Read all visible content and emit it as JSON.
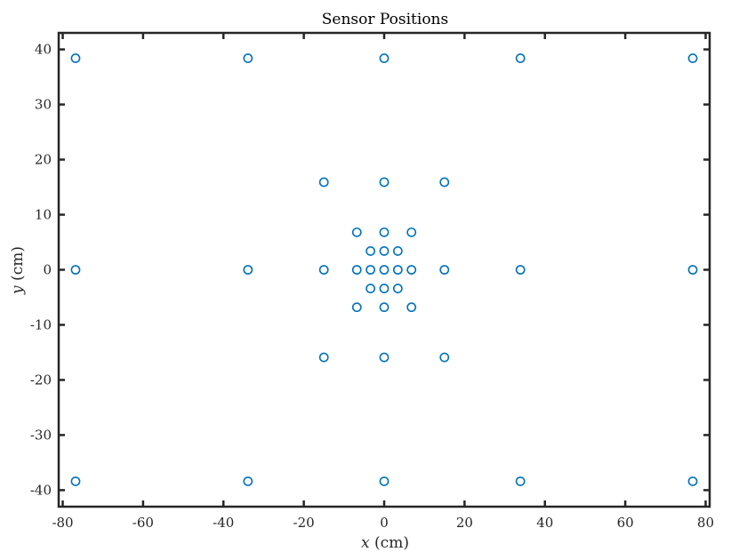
{
  "chart_data": {
    "type": "scatter",
    "title": "Sensor Positions",
    "xlabel": {
      "var": "x",
      "unit": "(cm)"
    },
    "ylabel": {
      "var": "y",
      "unit": "(cm)"
    },
    "xlim": [
      -81,
      81
    ],
    "ylim": [
      -43,
      43
    ],
    "xticks": [
      -80,
      -60,
      -40,
      -20,
      0,
      20,
      40,
      60,
      80
    ],
    "yticks": [
      -40,
      -30,
      -20,
      -10,
      0,
      10,
      20,
      30,
      40
    ],
    "grid": false,
    "marker": "open-circle",
    "color": "#0072BD",
    "series": [
      {
        "x": [
          -76.8,
          -33.9,
          0,
          33.9,
          76.8,
          -15,
          0,
          15,
          -6.8,
          0,
          6.8,
          -3.4,
          0,
          3.4,
          -76.8,
          -33.9,
          -15,
          -6.8,
          -3.4,
          0,
          3.4,
          6.8,
          15,
          33.9,
          76.8,
          -3.4,
          0,
          3.4,
          -6.8,
          0,
          6.8,
          -15,
          0,
          15,
          -76.8,
          -33.9,
          0,
          33.9,
          76.8
        ],
        "y": [
          38.4,
          38.4,
          38.4,
          38.4,
          38.4,
          15.9,
          15.9,
          15.9,
          6.8,
          6.8,
          6.8,
          3.4,
          3.4,
          3.4,
          0,
          0,
          0,
          0,
          0,
          0,
          0,
          0,
          0,
          0,
          0,
          -3.4,
          -3.4,
          -3.4,
          -6.8,
          -6.8,
          -6.8,
          -15.9,
          -15.9,
          -15.9,
          -38.4,
          -38.4,
          -38.4,
          -38.4,
          -38.4
        ]
      }
    ]
  }
}
